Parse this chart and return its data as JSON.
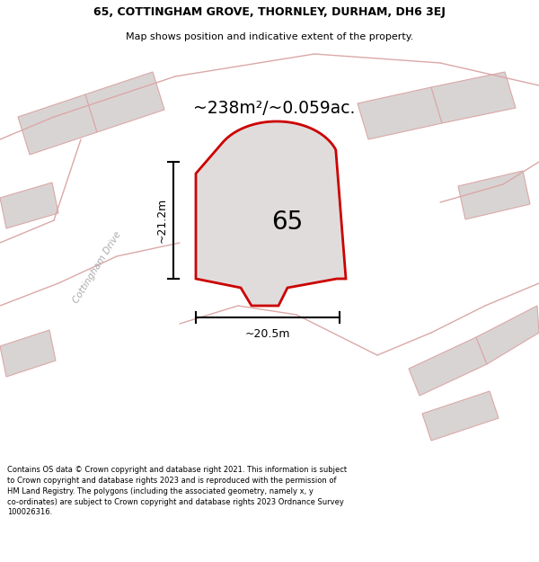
{
  "title_line1": "65, COTTINGHAM GROVE, THORNLEY, DURHAM, DH6 3EJ",
  "title_line2": "Map shows position and indicative extent of the property.",
  "area_text": "~238m²/~0.059ac.",
  "plot_number": "65",
  "dim_width": "~20.5m",
  "dim_height": "~21.2m",
  "street_name": "Cottingham Drive",
  "footer_text": "Contains OS data © Crown copyright and database right 2021. This information is subject to Crown copyright and database rights 2023 and is reproduced with the permission of HM Land Registry. The polygons (including the associated geometry, namely x, y co-ordinates) are subject to Crown copyright and database rights 2023 Ordnance Survey 100026316.",
  "bg_color": "#ede9e9",
  "plot_fill_color": "#e0dcdc",
  "plot_edge_color": "#cc0000",
  "other_plot_fill": "#d8d4d4",
  "other_plot_edge": "#dba8a8",
  "road_line_color": "#dba8a8",
  "dim_line_color": "#000000",
  "text_color": "#000000",
  "white": "#ffffff",
  "street_label_color": "#aaaaaa"
}
